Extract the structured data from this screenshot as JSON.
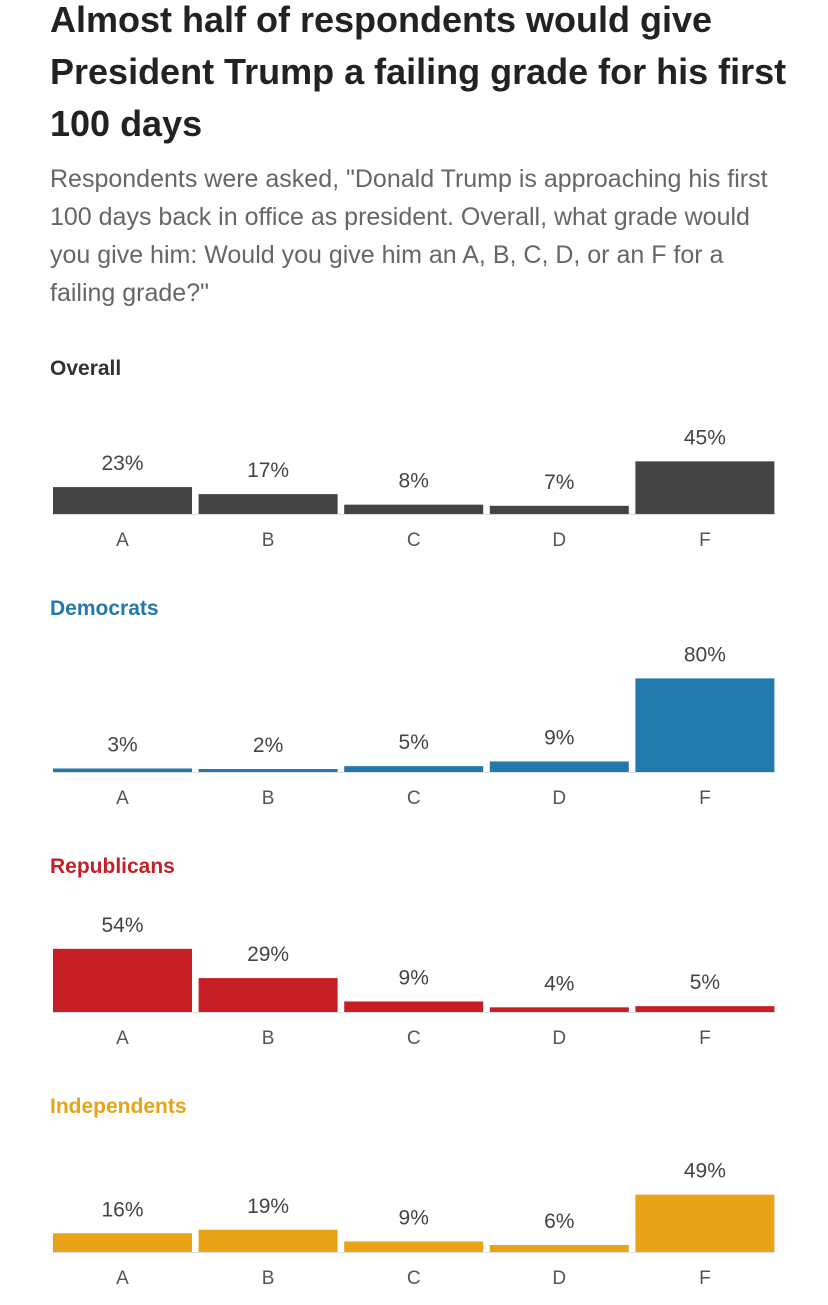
{
  "title": "Almost half of respondents would give President Trump a failing grade for his first 100 days",
  "subtitle": "Respondents were asked, \"Donald Trump is approaching his first 100 days back in office as president. Overall, what grade would you give him: Would you give him an A, B, C, D, or an F for a failing grade?\"",
  "chart_data": [
    {
      "type": "bar",
      "title": "Overall",
      "color": "#444444",
      "categories": [
        "A",
        "B",
        "C",
        "D",
        "F"
      ],
      "values": [
        23,
        17,
        8,
        7,
        45
      ],
      "value_labels": [
        "23%",
        "17%",
        "8%",
        "7%",
        "45%"
      ],
      "ylim": [
        0,
        100
      ],
      "grid": false
    },
    {
      "type": "bar",
      "title": "Democrats",
      "color": "#2378ac",
      "categories": [
        "A",
        "B",
        "C",
        "D",
        "F"
      ],
      "values": [
        3,
        2,
        5,
        9,
        80
      ],
      "value_labels": [
        "3%",
        "2%",
        "5%",
        "9%",
        "80%"
      ],
      "ylim": [
        0,
        100
      ],
      "grid": false
    },
    {
      "type": "bar",
      "title": "Republicans",
      "color": "#c62026",
      "categories": [
        "A",
        "B",
        "C",
        "D",
        "F"
      ],
      "values": [
        54,
        29,
        9,
        4,
        5
      ],
      "value_labels": [
        "54%",
        "29%",
        "9%",
        "4%",
        "5%"
      ],
      "ylim": [
        0,
        100
      ],
      "grid": false
    },
    {
      "type": "bar",
      "title": "Independents",
      "color": "#e8a317",
      "categories": [
        "A",
        "B",
        "C",
        "D",
        "F"
      ],
      "values": [
        16,
        19,
        9,
        6,
        49
      ],
      "value_labels": [
        "16%",
        "19%",
        "9%",
        "6%",
        "49%"
      ],
      "ylim": [
        0,
        100
      ],
      "grid": false
    }
  ]
}
